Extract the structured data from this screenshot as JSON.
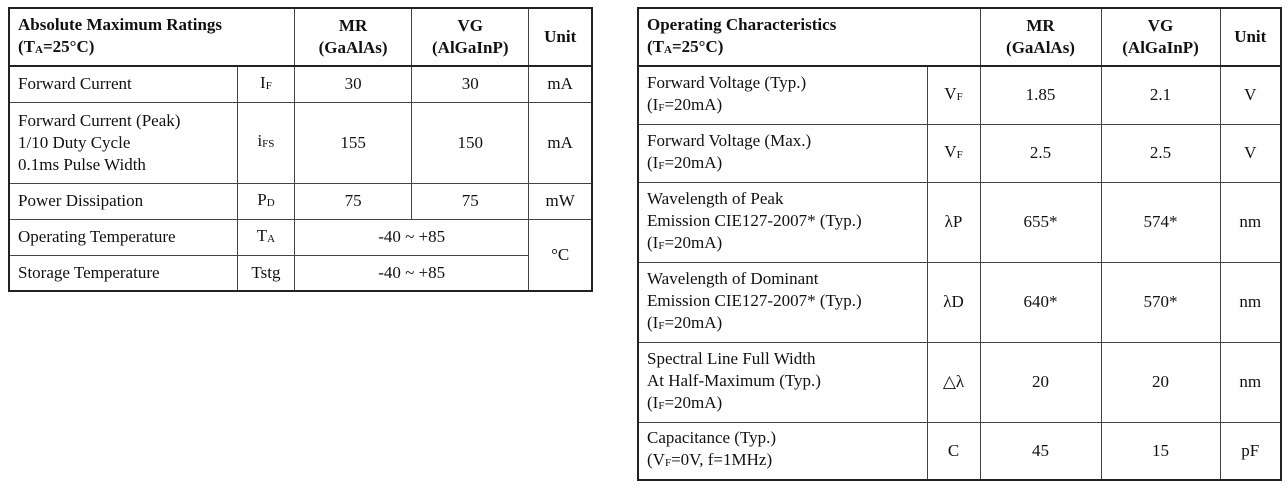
{
  "left": {
    "title": "Absolute Maximum Ratings",
    "condition": [
      "(T",
      "A",
      "=25°C)"
    ],
    "columns": [
      [
        "MR",
        "(GaAlAs)"
      ],
      [
        "VG",
        "(AlGaInP)"
      ]
    ],
    "unit_header": "Unit",
    "rows": [
      {
        "label": [
          "Forward Current"
        ],
        "symbol": [
          "I",
          "F"
        ],
        "mr": 30,
        "vg": 30,
        "unit": "mA"
      },
      {
        "label": [
          "Forward Current (Peak)",
          "1/10 Duty Cycle",
          "0.1ms Pulse Width"
        ],
        "symbol": [
          "i",
          "FS"
        ],
        "mr": 155,
        "vg": 150,
        "unit": "mA"
      },
      {
        "label": [
          "Power Dissipation"
        ],
        "symbol": [
          "P",
          "D"
        ],
        "mr": 75,
        "vg": 75,
        "unit": "mW"
      },
      {
        "label": [
          "Operating Temperature"
        ],
        "symbol": [
          "T",
          "A"
        ],
        "range": "-40 ~ +85",
        "unit": "°C"
      },
      {
        "label": [
          "Storage Temperature"
        ],
        "symbol": "Tstg",
        "range": "-40 ~ +85"
      }
    ]
  },
  "right": {
    "title": "Operating Characteristics",
    "condition": [
      "(T",
      "A",
      "=25°C)"
    ],
    "columns": [
      [
        "MR",
        "(GaAlAs)"
      ],
      [
        "VG",
        "(AlGaInP)"
      ]
    ],
    "unit_header": "Unit",
    "rows": [
      {
        "label": [
          "Forward Voltage (Typ.)"
        ],
        "cond": [
          "(I",
          "F",
          "=20mA)"
        ],
        "symbol": [
          "V",
          "F"
        ],
        "mr": 1.85,
        "vg": 2.1,
        "unit": "V"
      },
      {
        "label": [
          "Forward Voltage (Max.)"
        ],
        "cond": [
          "(I",
          "F",
          "=20mA)"
        ],
        "symbol": [
          "V",
          "F"
        ],
        "mr": 2.5,
        "vg": 2.5,
        "unit": "V"
      },
      {
        "label": [
          "Wavelength of Peak",
          "Emission CIE127-2007* (Typ.)"
        ],
        "cond": [
          "(I",
          "F",
          "=20mA)"
        ],
        "symbol": "λP",
        "mr": "655*",
        "vg": "574*",
        "unit": "nm"
      },
      {
        "label": [
          "Wavelength of Dominant",
          "Emission CIE127-2007* (Typ.)"
        ],
        "cond": [
          "(I",
          "F",
          "=20mA)"
        ],
        "symbol": "λD",
        "mr": "640*",
        "vg": "570*",
        "unit": "nm"
      },
      {
        "label": [
          "Spectral Line Full Width",
          "At Half-Maximum (Typ.)"
        ],
        "cond": [
          "(I",
          "F",
          "=20mA)"
        ],
        "symbol": "△λ",
        "mr": 20,
        "vg": 20,
        "unit": "nm"
      },
      {
        "label": [
          "Capacitance (Typ.)"
        ],
        "cond": [
          "(V",
          "F",
          "=0V, f=1MHz)"
        ],
        "symbol": "C",
        "mr": 45,
        "vg": 15,
        "unit": "pF"
      }
    ]
  }
}
